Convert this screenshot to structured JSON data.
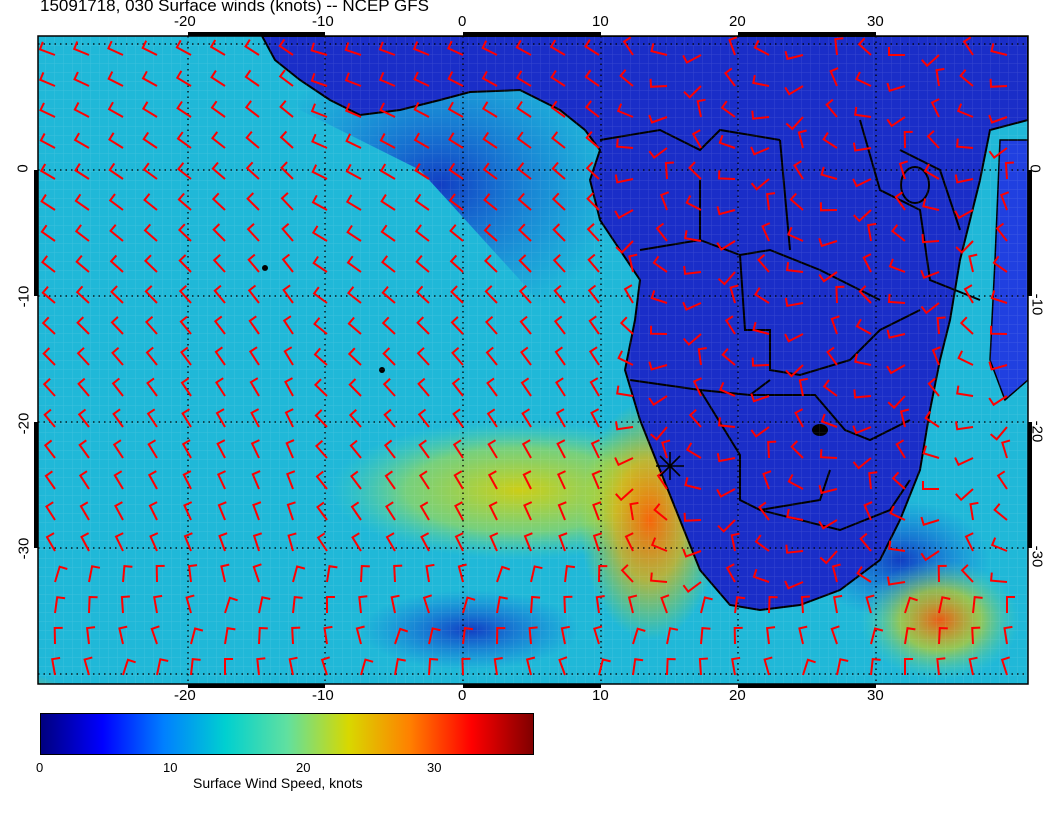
{
  "title": "15091718, 030 Surface winds (knots) -- NCEP GFS",
  "axes": {
    "top_ticks": [
      "-20",
      "-10",
      "0",
      "10",
      "20",
      "30"
    ],
    "bottom_ticks": [
      "-20",
      "-10",
      "0",
      "10",
      "20",
      "30"
    ],
    "left_ticks": [
      "0",
      "-10",
      "-20",
      "-30"
    ],
    "right_ticks": [
      "0",
      "-10",
      "-20",
      "-30"
    ]
  },
  "colorbar": {
    "title": "Surface Wind Speed, knots",
    "labels": [
      "0",
      "10",
      "20",
      "30"
    ],
    "range": [
      0,
      37
    ],
    "colors": [
      "#00007f",
      "#0000ff",
      "#0080ff",
      "#00d0d0",
      "#60e0a0",
      "#d8d800",
      "#ff8000",
      "#ff0000",
      "#800000"
    ]
  },
  "map": {
    "lon_range": [
      -30,
      40
    ],
    "lat_range": [
      -37,
      10
    ],
    "ocean_color": "#20b8d8",
    "land_color": "#1c30d0",
    "barb_color": "#ff0000",
    "marker_icon": "asterisk-marker"
  }
}
